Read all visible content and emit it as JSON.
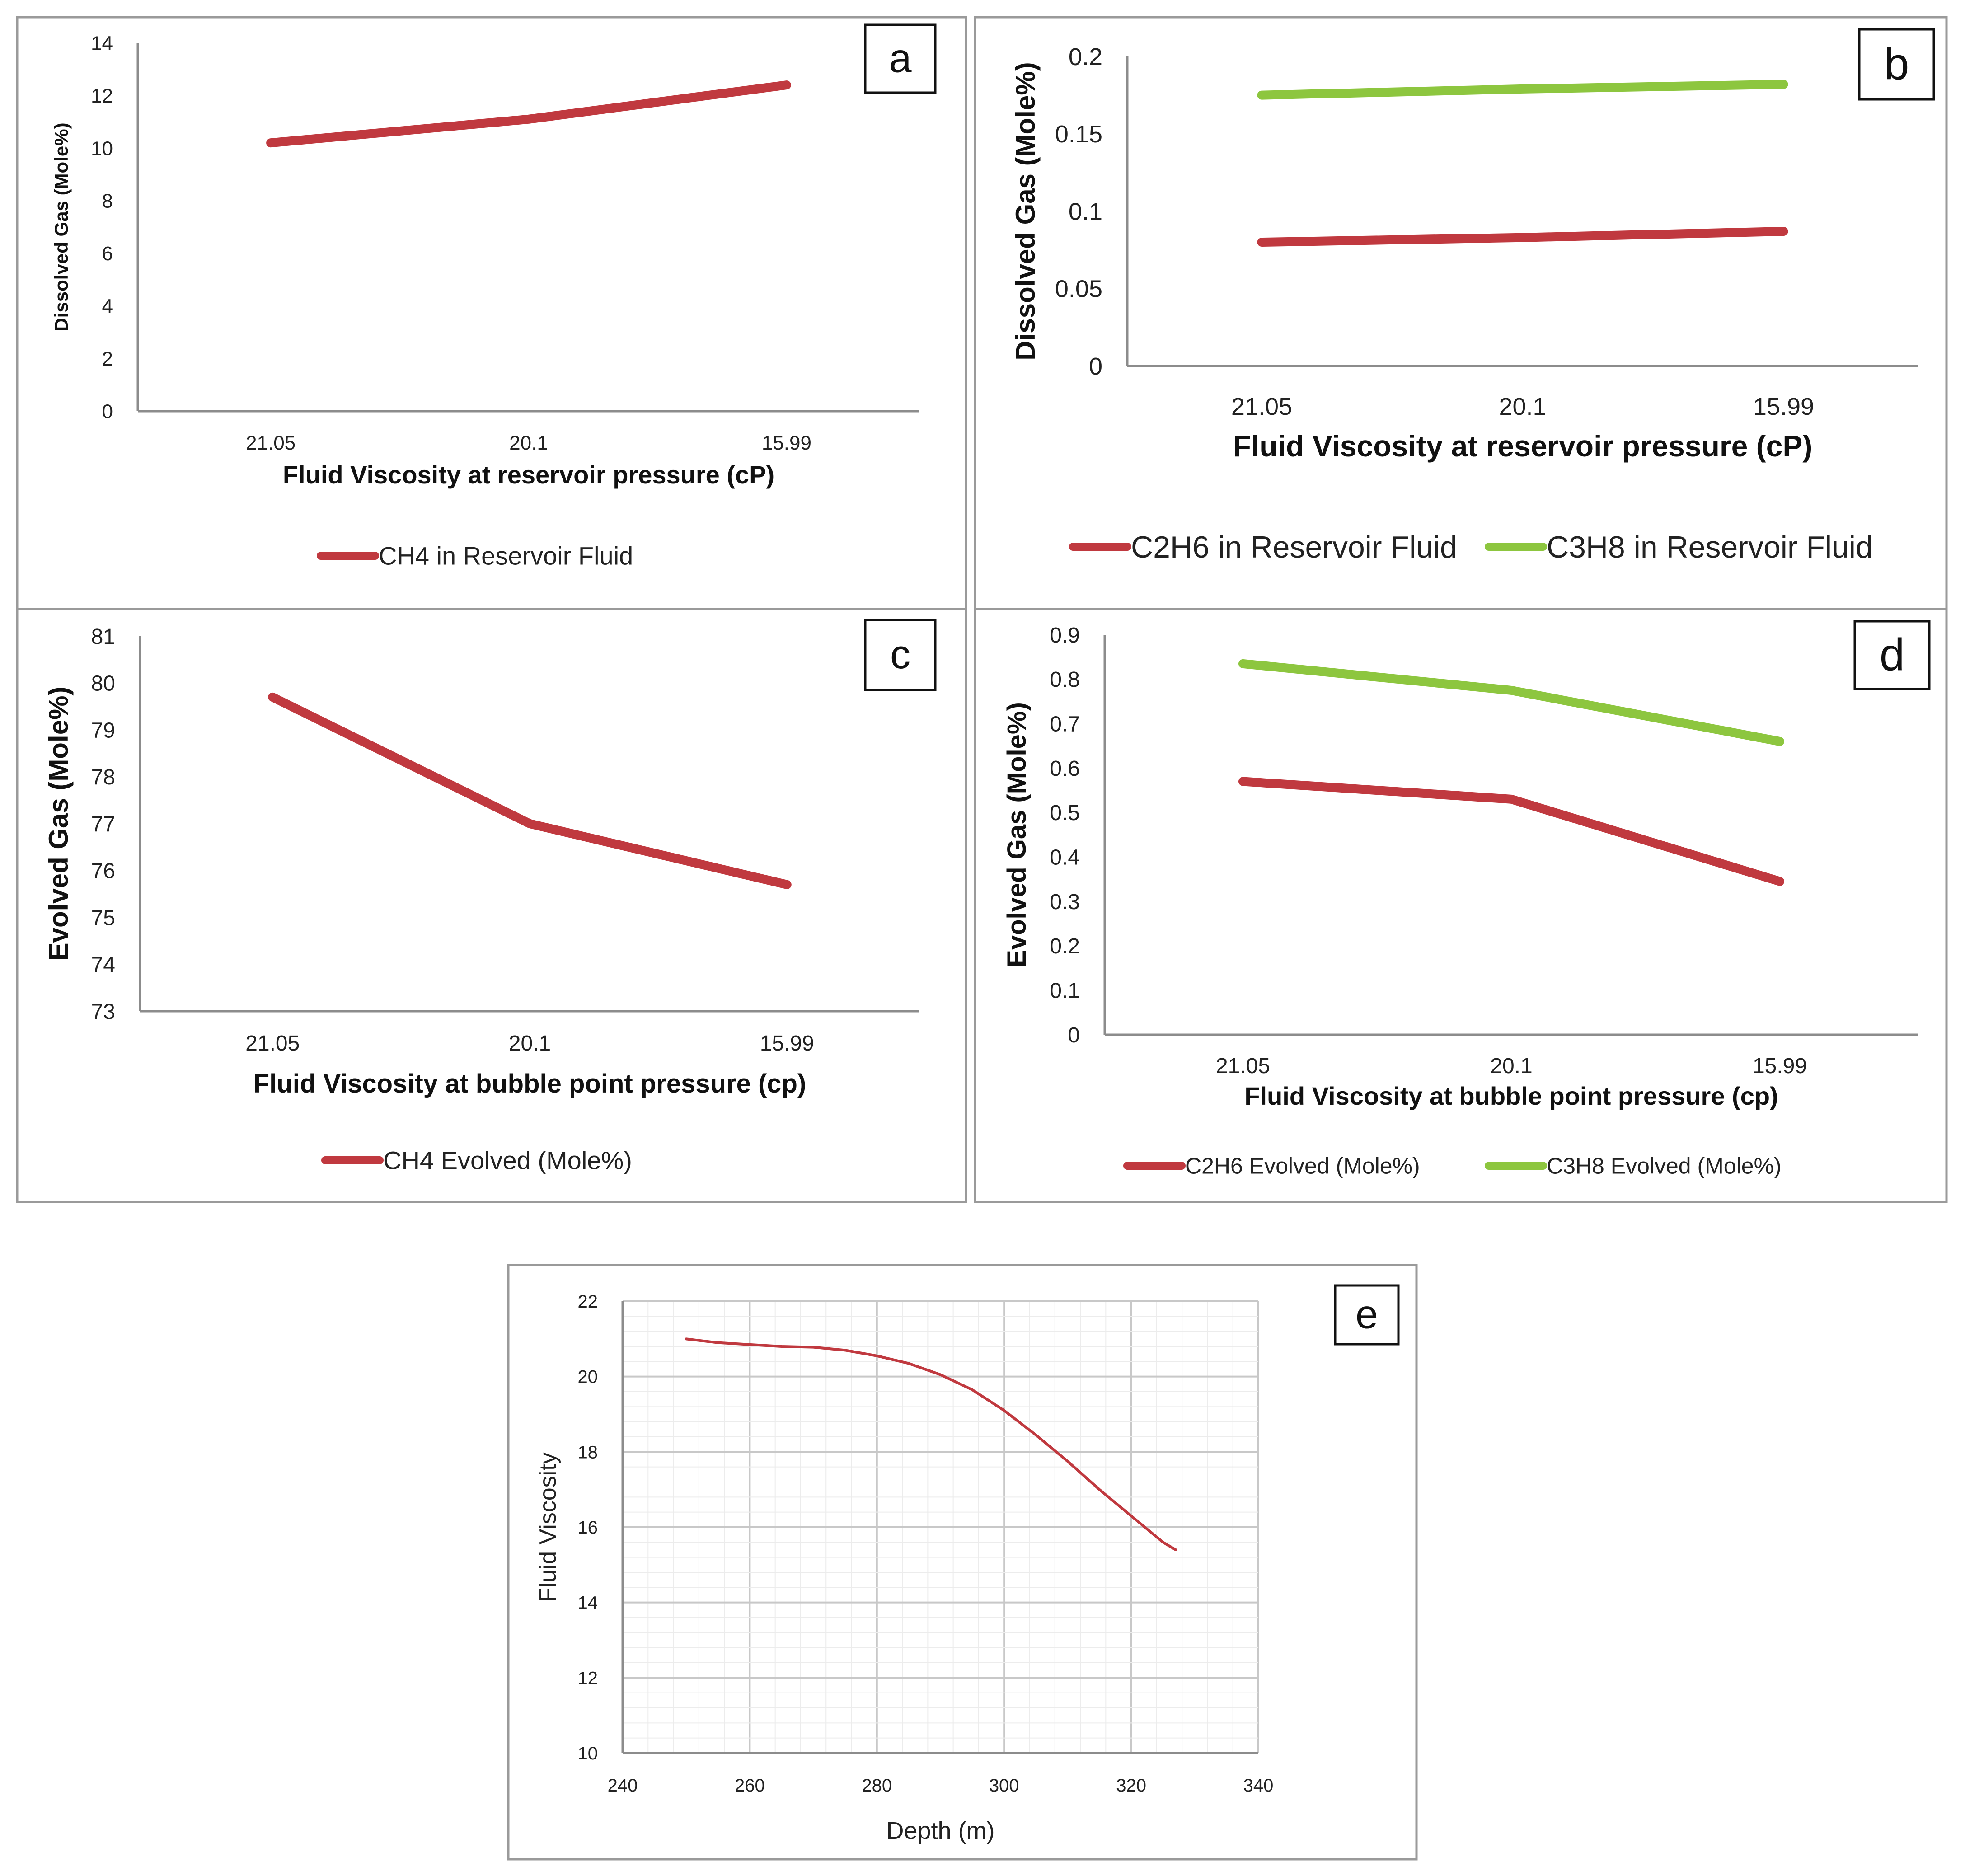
{
  "colors": {
    "red": "#c0393f",
    "green": "#8dc63f",
    "frame": "#9a9a9a",
    "axis": "#8c8c8c",
    "grid": "#d9d9d9"
  },
  "chart_data": [
    {
      "id": "a",
      "panel_label": "a",
      "type": "line",
      "categories": [
        "21.05",
        "20.1",
        "15.99"
      ],
      "xlabel": "Fluid Viscosity at reservoir pressure  (cP)",
      "ylabel": "Dissolved Gas (Mole%)",
      "ylim": [
        0,
        14
      ],
      "yticks": [
        "0",
        "2",
        "4",
        "6",
        "8",
        "10",
        "12",
        "14"
      ],
      "series": [
        {
          "name": "CH4 in Reservoir Fluid",
          "color": "#c0393f",
          "values": [
            10.2,
            11.1,
            12.4
          ]
        }
      ]
    },
    {
      "id": "b",
      "panel_label": "b",
      "type": "line",
      "categories": [
        "21.05",
        "20.1",
        "15.99"
      ],
      "xlabel": "Fluid Viscosity at reservoir pressure  (cP)",
      "ylabel": "Dissolved Gas (Mole%)",
      "ylim": [
        0,
        0.2
      ],
      "yticks": [
        "0",
        "0.05",
        "0.1",
        "0.15",
        "0.2"
      ],
      "series": [
        {
          "name": "C2H6  in Reservoir Fluid",
          "color": "#c0393f",
          "values": [
            0.08,
            0.083,
            0.087
          ]
        },
        {
          "name": "C3H8  in Reservoir Fluid",
          "color": "#8dc63f",
          "values": [
            0.175,
            0.179,
            0.182
          ]
        }
      ]
    },
    {
      "id": "c",
      "panel_label": "c",
      "type": "line",
      "categories": [
        "21.05",
        "20.1",
        "15.99"
      ],
      "xlabel": "Fluid Viscosity at bubble point pressure (cp)",
      "ylabel": "Evolved Gas (Mole%)",
      "ylim": [
        73,
        81
      ],
      "yticks": [
        "73",
        "74",
        "75",
        "76",
        "77",
        "78",
        "79",
        "80",
        "81"
      ],
      "series": [
        {
          "name": "CH4 Evolved (Mole%)",
          "color": "#c0393f",
          "values": [
            79.7,
            77.0,
            75.7
          ]
        }
      ]
    },
    {
      "id": "d",
      "panel_label": "d",
      "type": "line",
      "categories": [
        "21.05",
        "20.1",
        "15.99"
      ],
      "xlabel": "Fluid Viscosity at bubble point pressure (cp)",
      "ylabel": "Evolved Gas (Mole%)",
      "ylim": [
        0,
        0.9
      ],
      "yticks": [
        "0",
        "0.1",
        "0.2",
        "0.3",
        "0.4",
        "0.5",
        "0.6",
        "0.7",
        "0.8",
        "0.9"
      ],
      "series": [
        {
          "name": "C2H6  Evolved (Mole%)",
          "color": "#c0393f",
          "values": [
            0.57,
            0.53,
            0.345
          ]
        },
        {
          "name": "C3H8  Evolved (Mole%)",
          "color": "#8dc63f",
          "values": [
            0.835,
            0.775,
            0.66
          ]
        }
      ]
    },
    {
      "id": "e",
      "panel_label": "e",
      "type": "line",
      "xlabel": "Depth (m)",
      "ylabel": "Fluid Viscosity",
      "xlim": [
        240,
        340
      ],
      "ylim": [
        10,
        22
      ],
      "xticks": [
        "240",
        "260",
        "280",
        "300",
        "320",
        "340"
      ],
      "yticks": [
        "10",
        "12",
        "14",
        "16",
        "18",
        "20",
        "22"
      ],
      "grid": true,
      "series": [
        {
          "name": "Fluid Viscosity",
          "color": "#c0393f",
          "x": [
            250,
            255,
            260,
            265,
            270,
            275,
            280,
            285,
            290,
            295,
            300,
            305,
            310,
            315,
            320,
            325,
            327
          ],
          "y": [
            21.0,
            20.9,
            20.85,
            20.8,
            20.78,
            20.7,
            20.55,
            20.35,
            20.05,
            19.65,
            19.1,
            18.45,
            17.75,
            17.0,
            16.3,
            15.6,
            15.4
          ]
        }
      ]
    }
  ]
}
